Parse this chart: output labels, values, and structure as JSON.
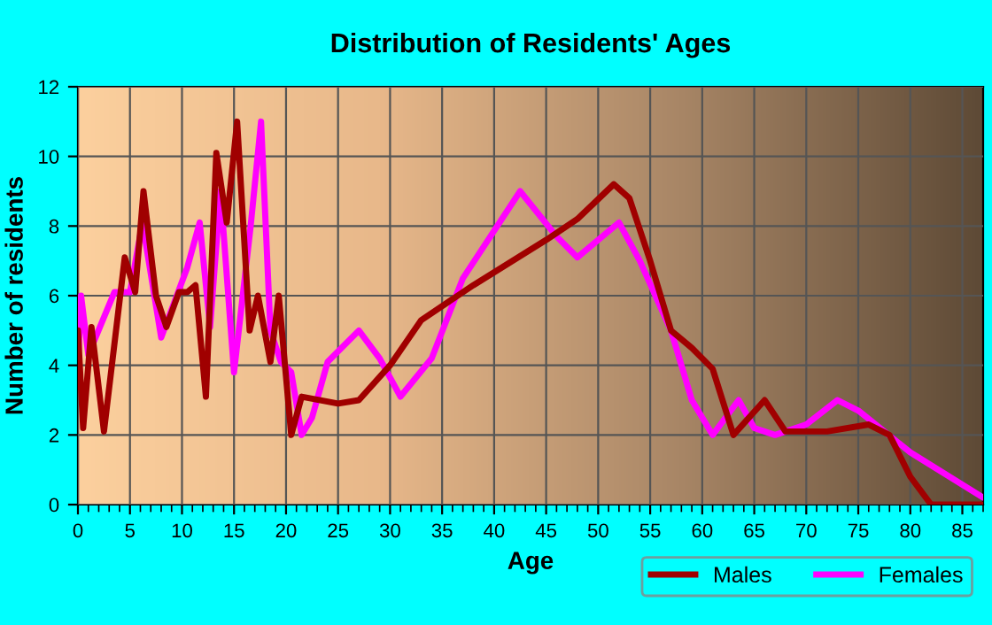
{
  "chart_data": {
    "type": "line",
    "title": "Distribution of Residents' Ages",
    "xlabel": "Age",
    "ylabel": "Number of residents",
    "xlim": [
      0,
      87
    ],
    "xticks": [
      0,
      5,
      10,
      15,
      20,
      25,
      30,
      35,
      40,
      45,
      50,
      55,
      60,
      65,
      70,
      75,
      80,
      85
    ],
    "ylim": [
      0,
      12
    ],
    "yticks": [
      0,
      2,
      4,
      6,
      8,
      10,
      12
    ],
    "grid": true,
    "legend": "bottom right",
    "marker": "none",
    "line_style": "solid",
    "series": [
      {
        "name": "Males",
        "color": "#a00000",
        "x": [
          0,
          0.5,
          1.3,
          2.5,
          4.5,
          5.5,
          6.3,
          7.5,
          8.5,
          9.7,
          10.5,
          11.3,
          12.3,
          13.3,
          14.3,
          15.3,
          16.5,
          17.3,
          18.5,
          19.3,
          20.5,
          21.5,
          25,
          27,
          30,
          33,
          38,
          45,
          48,
          51.5,
          53,
          55,
          57,
          59,
          61,
          63,
          66,
          68,
          72,
          76,
          78,
          80,
          82,
          87
        ],
        "values": [
          5,
          2.2,
          5.1,
          2.1,
          7.1,
          6.1,
          9,
          6,
          5.1,
          6.1,
          6.1,
          6.3,
          3.1,
          10.1,
          8.1,
          11,
          5,
          6,
          4.1,
          6,
          2,
          3.1,
          2.9,
          3,
          4,
          5.3,
          6.3,
          7.6,
          8.2,
          9.2,
          8.8,
          7,
          5,
          4.5,
          3.9,
          2,
          3,
          2.1,
          2.1,
          2.3,
          2,
          0.8,
          0,
          0
        ]
      },
      {
        "name": "Females",
        "color": "#ff00ff",
        "x": [
          0,
          0.3,
          1,
          3.5,
          5,
          6.2,
          8,
          9.5,
          10.5,
          11.7,
          12.7,
          13.7,
          15,
          16.6,
          17.6,
          18.5,
          19.5,
          20.5,
          21.5,
          22.5,
          24,
          27,
          29,
          31,
          34,
          37,
          42.5,
          46,
          48,
          52,
          54,
          57,
          59,
          61,
          63.5,
          65,
          67,
          70,
          73,
          75,
          80,
          87
        ],
        "values": [
          4,
          6,
          4.3,
          6.1,
          6.1,
          8.1,
          4.8,
          6,
          6.8,
          8.1,
          5.1,
          9,
          3.8,
          8,
          11,
          5,
          4.1,
          3.8,
          2,
          2.5,
          4.1,
          5,
          4.2,
          3.1,
          4.2,
          6.5,
          9,
          7.7,
          7.1,
          8.1,
          7,
          5,
          3,
          2,
          3,
          2.2,
          2,
          2.3,
          3,
          2.7,
          1.5,
          0.2
        ]
      }
    ]
  }
}
